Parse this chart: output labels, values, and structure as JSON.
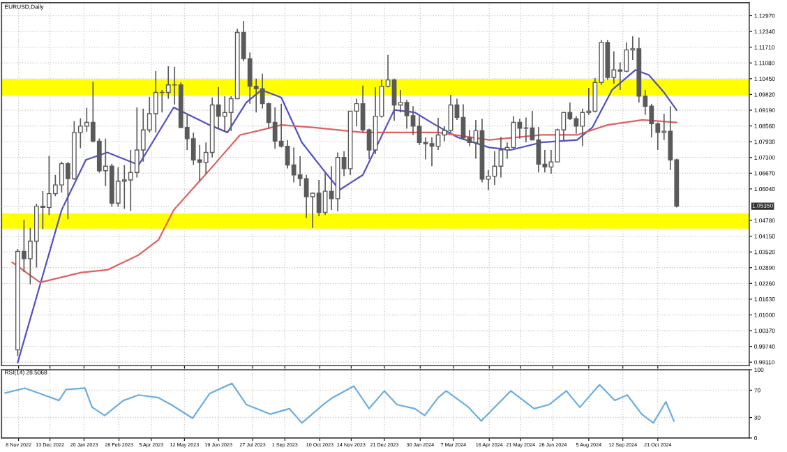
{
  "chart_data": [
    {
      "type": "candlestick",
      "title": "EURUSD,Daily",
      "color": "#5a5a5a",
      "x": [
        "2022-11-07",
        "2022-11-14",
        "2022-11-21",
        "2022-11-28",
        "2022-12-05",
        "2022-12-12",
        "2022-12-19",
        "2022-12-26",
        "2023-01-02",
        "2023-01-09",
        "2023-01-16",
        "2023-01-23",
        "2023-01-30",
        "2023-02-06",
        "2023-02-13",
        "2023-02-20",
        "2023-02-27",
        "2023-03-06",
        "2023-03-13",
        "2023-03-20",
        "2023-03-27",
        "2023-04-03",
        "2023-04-10",
        "2023-04-17",
        "2023-04-24",
        "2023-05-01",
        "2023-05-08",
        "2023-05-15",
        "2023-05-22",
        "2023-05-29",
        "2023-06-05",
        "2023-06-12",
        "2023-06-19",
        "2023-06-26",
        "2023-07-03",
        "2023-07-10",
        "2023-07-17",
        "2023-07-24",
        "2023-07-31",
        "2023-08-07",
        "2023-08-14",
        "2023-08-21",
        "2023-08-28",
        "2023-09-04",
        "2023-09-11",
        "2023-09-18",
        "2023-09-25",
        "2023-10-02",
        "2023-10-09",
        "2023-10-16",
        "2023-10-23",
        "2023-10-30",
        "2023-11-06",
        "2023-11-13",
        "2023-11-20",
        "2023-11-27",
        "2023-12-04",
        "2023-12-11",
        "2023-12-18",
        "2023-12-25",
        "2024-01-01",
        "2024-01-08",
        "2024-01-15",
        "2024-01-22",
        "2024-01-29",
        "2024-02-05",
        "2024-02-12",
        "2024-02-19",
        "2024-02-26",
        "2024-03-04",
        "2024-03-11",
        "2024-03-18",
        "2024-03-25",
        "2024-04-01",
        "2024-04-08",
        "2024-04-15",
        "2024-04-22",
        "2024-04-29",
        "2024-05-06",
        "2024-05-13",
        "2024-05-20",
        "2024-05-27",
        "2024-06-03",
        "2024-06-10",
        "2024-06-17",
        "2024-06-24",
        "2024-07-01",
        "2024-07-08",
        "2024-07-15",
        "2024-07-22",
        "2024-07-29",
        "2024-08-05",
        "2024-08-12",
        "2024-08-19",
        "2024-08-26",
        "2024-09-02",
        "2024-09-09",
        "2024-09-16",
        "2024-09-23",
        "2024-09-30",
        "2024-10-07",
        "2024-10-14",
        "2024-10-21",
        "2024-10-28",
        "2024-11-04",
        "2024-11-11"
      ],
      "ohlc": [
        [
          0.996,
          1.0364,
          0.9935,
          1.0354
        ],
        [
          1.0354,
          1.048,
          1.0271,
          1.0325
        ],
        [
          1.0325,
          1.0448,
          1.0222,
          1.0395
        ],
        [
          1.0395,
          1.0545,
          1.029,
          1.0535
        ],
        [
          1.0535,
          1.0595,
          1.0443,
          1.053
        ],
        [
          1.053,
          1.0736,
          1.05,
          1.0585
        ],
        [
          1.0585,
          1.066,
          1.0575,
          1.062
        ],
        [
          1.062,
          1.0713,
          1.059,
          1.0705
        ],
        [
          1.0705,
          1.0712,
          1.0483,
          1.0645
        ],
        [
          1.0645,
          1.0875,
          1.064,
          1.083
        ],
        [
          1.083,
          1.0887,
          1.0767,
          1.0855
        ],
        [
          1.0855,
          1.0929,
          1.0833,
          1.087
        ],
        [
          1.087,
          1.1033,
          1.079,
          1.0795
        ],
        [
          1.0795,
          1.0806,
          1.0669,
          1.0677
        ],
        [
          1.0677,
          1.0805,
          1.0615,
          1.0695
        ],
        [
          1.0695,
          1.0705,
          1.0533,
          1.0547
        ],
        [
          1.0547,
          1.0691,
          1.0533,
          1.0635
        ],
        [
          1.0635,
          1.07,
          1.0524,
          1.064
        ],
        [
          1.064,
          1.076,
          1.0516,
          1.067
        ],
        [
          1.067,
          1.093,
          1.065,
          1.076
        ],
        [
          1.076,
          1.0925,
          1.0713,
          1.084
        ],
        [
          1.084,
          1.0973,
          1.083,
          1.0905
        ],
        [
          1.0905,
          1.1075,
          1.083,
          1.099
        ],
        [
          1.099,
          1.1,
          1.091,
          1.099
        ],
        [
          1.099,
          1.1095,
          1.0965,
          1.102
        ],
        [
          1.102,
          1.1092,
          1.0942,
          1.102
        ],
        [
          1.102,
          1.103,
          1.085,
          1.085
        ],
        [
          1.085,
          1.09,
          1.076,
          1.0805
        ],
        [
          1.0805,
          1.083,
          1.07,
          1.072
        ],
        [
          1.072,
          1.078,
          1.0635,
          1.071
        ],
        [
          1.071,
          1.079,
          1.0665,
          1.075
        ],
        [
          1.075,
          1.097,
          1.073,
          1.094
        ],
        [
          1.094,
          1.1012,
          1.0845,
          1.0895
        ],
        [
          1.0895,
          1.0975,
          1.0835,
          1.091
        ],
        [
          1.091,
          1.0975,
          1.0835,
          1.0965
        ],
        [
          1.0965,
          1.1245,
          1.0965,
          1.123
        ],
        [
          1.123,
          1.1276,
          1.1115,
          1.1125
        ],
        [
          1.1125,
          1.115,
          1.0945,
          1.1015
        ],
        [
          1.1015,
          1.1045,
          1.091,
          1.1005
        ],
        [
          1.1005,
          1.1065,
          1.0925,
          1.0945
        ],
        [
          1.0945,
          1.095,
          1.0845,
          1.087
        ],
        [
          1.087,
          1.093,
          1.0765,
          1.0795
        ],
        [
          1.0795,
          1.0945,
          1.077,
          1.0775
        ],
        [
          1.0775,
          1.08,
          1.0686,
          1.07
        ],
        [
          1.07,
          1.077,
          1.063,
          1.066
        ],
        [
          1.066,
          1.0735,
          1.0615,
          1.0645
        ],
        [
          1.0645,
          1.066,
          1.0488,
          1.0573
        ],
        [
          1.0573,
          1.059,
          1.0448,
          1.0587
        ],
        [
          1.0587,
          1.064,
          1.0495,
          1.051
        ],
        [
          1.051,
          1.067,
          1.05,
          1.0595
        ],
        [
          1.0595,
          1.0695,
          1.052,
          1.0565
        ],
        [
          1.0565,
          1.075,
          1.0515,
          1.073
        ],
        [
          1.073,
          1.0755,
          1.0655,
          1.0685
        ],
        [
          1.0685,
          1.0915,
          1.066,
          1.0915
        ],
        [
          1.0915,
          1.0965,
          1.0855,
          1.0945
        ],
        [
          1.0945,
          1.1017,
          1.083,
          1.084
        ],
        [
          1.084,
          1.0845,
          1.0723,
          1.076
        ],
        [
          1.076,
          1.101,
          1.0743,
          1.0895
        ],
        [
          1.0895,
          1.104,
          1.089,
          1.1015
        ],
        [
          1.1015,
          1.114,
          1.101,
          1.104
        ],
        [
          1.104,
          1.1045,
          1.0877,
          1.094
        ],
        [
          1.094,
          1.1,
          1.091,
          1.095
        ],
        [
          1.095,
          1.096,
          1.0845,
          1.0897
        ],
        [
          1.0897,
          1.0935,
          1.082,
          1.0855
        ],
        [
          1.0855,
          1.0895,
          1.078,
          1.079
        ],
        [
          1.079,
          1.081,
          1.0722,
          1.0785
        ],
        [
          1.0785,
          1.081,
          1.0695,
          1.0775
        ],
        [
          1.0775,
          1.0888,
          1.076,
          1.082
        ],
        [
          1.082,
          1.0855,
          1.0795,
          1.0838
        ],
        [
          1.0838,
          1.098,
          1.083,
          1.094
        ],
        [
          1.094,
          1.0965,
          1.088,
          1.089
        ],
        [
          1.089,
          1.0943,
          1.08,
          1.0808
        ],
        [
          1.0808,
          1.084,
          1.0775,
          1.079
        ],
        [
          1.079,
          1.088,
          1.0725,
          1.0837
        ],
        [
          1.0837,
          1.0885,
          1.063,
          1.0643
        ],
        [
          1.0643,
          1.068,
          1.06,
          1.0655
        ],
        [
          1.0655,
          1.0755,
          1.062,
          1.0695
        ],
        [
          1.0695,
          1.0812,
          1.065,
          1.076
        ],
        [
          1.076,
          1.079,
          1.0725,
          1.077
        ],
        [
          1.077,
          1.0895,
          1.0765,
          1.087
        ],
        [
          1.087,
          1.0885,
          1.0805,
          1.0847
        ],
        [
          1.0847,
          1.089,
          1.079,
          1.0848
        ],
        [
          1.0848,
          1.0916,
          1.08,
          1.08
        ],
        [
          1.08,
          1.0852,
          1.067,
          1.0703
        ],
        [
          1.0703,
          1.076,
          1.067,
          1.0692
        ],
        [
          1.0692,
          1.076,
          1.0665,
          1.0712
        ],
        [
          1.0712,
          1.0845,
          1.071,
          1.084
        ],
        [
          1.084,
          1.091,
          1.0795,
          1.091
        ],
        [
          1.091,
          1.095,
          1.088,
          1.0885
        ],
        [
          1.0885,
          1.0895,
          1.0825,
          1.0855
        ],
        [
          1.0855,
          1.0925,
          1.0775,
          1.091
        ],
        [
          1.091,
          1.1008,
          1.09,
          1.0915
        ],
        [
          1.0915,
          1.1047,
          1.091,
          1.103
        ],
        [
          1.103,
          1.12,
          1.102,
          1.119
        ],
        [
          1.119,
          1.12,
          1.104,
          1.105
        ],
        [
          1.105,
          1.1155,
          1.1025,
          1.108
        ],
        [
          1.108,
          1.111,
          1.1,
          1.1075
        ],
        [
          1.1075,
          1.119,
          1.107,
          1.116
        ],
        [
          1.116,
          1.1215,
          1.112,
          1.1165
        ],
        [
          1.1165,
          1.121,
          1.095,
          1.0975
        ],
        [
          1.0975,
          1.1,
          1.09,
          1.0935
        ],
        [
          1.0935,
          1.0945,
          1.081,
          1.0865
        ],
        [
          1.0865,
          1.087,
          1.076,
          1.083
        ],
        [
          1.083,
          1.0905,
          1.08,
          1.0835
        ],
        [
          1.0835,
          1.0935,
          1.068,
          1.072
        ],
        [
          1.072,
          1.0725,
          1.053,
          1.0535
        ]
      ],
      "series": [
        {
          "type": "line",
          "color": "#5050c8",
          "x": [
            "2022-11-07",
            "2022-12-26",
            "2023-01-22",
            "2023-02-15",
            "2023-03-22",
            "2023-04-30",
            "2023-06-09",
            "2023-06-29",
            "2023-07-20",
            "2023-08-06",
            "2023-08-28",
            "2023-09-20",
            "2023-10-14",
            "2023-11-01",
            "2023-11-27",
            "2024-01-01",
            "2024-01-24",
            "2024-02-16",
            "2024-03-12",
            "2024-04-16",
            "2024-05-10",
            "2024-06-13",
            "2024-07-23",
            "2024-08-09",
            "2024-08-31",
            "2024-09-26",
            "2024-10-11",
            "2024-10-28",
            "2024-11-11"
          ],
          "values": [
            0.991,
            1.052,
            1.072,
            1.075,
            1.07,
            1.093,
            1.086,
            1.083,
            1.095,
            1.1,
            1.097,
            1.079,
            1.068,
            1.06,
            1.066,
            1.092,
            1.091,
            1.086,
            1.081,
            1.077,
            1.076,
            1.079,
            1.08,
            1.085,
            1.1,
            1.108,
            1.106,
            1.099,
            1.092
          ]
        },
        {
          "type": "line",
          "color": "#e06060",
          "x": [
            "2022-11-01",
            "2022-12-02",
            "2023-01-17",
            "2023-02-15",
            "2023-03-22",
            "2023-04-13",
            "2023-04-30",
            "2023-06-09",
            "2023-07-13",
            "2023-08-06",
            "2023-08-28",
            "2023-10-02",
            "2023-11-27",
            "2024-01-24",
            "2024-02-19",
            "2024-04-16",
            "2024-06-13",
            "2024-07-23",
            "2024-08-26",
            "2024-10-04",
            "2024-11-11"
          ],
          "values": [
            1.031,
            1.023,
            1.027,
            1.028,
            1.034,
            1.04,
            1.052,
            1.068,
            1.082,
            1.084,
            1.086,
            1.085,
            1.083,
            1.083,
            1.083,
            1.08,
            1.082,
            1.082,
            1.086,
            1.088,
            1.087
          ]
        }
      ],
      "bands": [
        {
          "axis": "y",
          "from": 1.0977,
          "to": 1.1044,
          "color": "#ffff00"
        },
        {
          "axis": "y",
          "from": 1.0445,
          "to": 1.0506,
          "color": "#ffff00"
        }
      ],
      "ref_lines": [
        {
          "axis": "y",
          "value": 1.0535,
          "label": "1.05350",
          "color": "#c0c0c0",
          "line_style": "dotted"
        }
      ],
      "xlim": [
        "2022-10-20",
        "2025-01-31"
      ],
      "xticks": [
        {
          "value": "2022-11-08",
          "label": null
        },
        {
          "value": "2022-12-13",
          "label": null
        },
        {
          "value": "2023-01-20",
          "label": null
        },
        {
          "value": "2023-02-28",
          "label": null
        },
        {
          "value": "2023-04-05",
          "label": null
        },
        {
          "value": "2023-05-12",
          "label": null
        },
        {
          "value": "2023-06-19",
          "label": null
        },
        {
          "value": "2023-07-27",
          "label": null
        },
        {
          "value": "2023-09-01",
          "label": null
        },
        {
          "value": "2023-10-10",
          "label": null
        },
        {
          "value": "2023-11-14",
          "label": null
        },
        {
          "value": "2023-12-21",
          "label": null
        },
        {
          "value": "2024-01-30",
          "label": null
        },
        {
          "value": "2024-03-07",
          "label": null
        },
        {
          "value": "2024-04-16",
          "label": null
        },
        {
          "value": "2024-05-21",
          "label": null
        },
        {
          "value": "2024-06-26",
          "label": null
        },
        {
          "value": "2024-08-05",
          "label": null
        },
        {
          "value": "2024-09-12",
          "label": null
        },
        {
          "value": "2024-10-21",
          "label": null
        }
      ],
      "ylim": [
        0.9897,
        1.1349
      ],
      "yticks": [
        {
          "value": 1.1297,
          "label": "1.12970"
        },
        {
          "value": 1.1234,
          "label": "1.12340"
        },
        {
          "value": 1.1171,
          "label": "1.11710"
        },
        {
          "value": 1.1108,
          "label": "1.11080"
        },
        {
          "value": 1.1045,
          "label": "1.10450"
        },
        {
          "value": 1.0982,
          "label": "1.09820"
        },
        {
          "value": 1.0919,
          "label": "1.09190"
        },
        {
          "value": 1.0856,
          "label": "1.08560"
        },
        {
          "value": 1.0793,
          "label": "1.07930"
        },
        {
          "value": 1.073,
          "label": "1.07300"
        },
        {
          "value": 1.0667,
          "label": "1.06670"
        },
        {
          "value": 1.0604,
          "label": "1.06040"
        },
        {
          "value": 1.0478,
          "label": "1.04780"
        },
        {
          "value": 1.0415,
          "label": "1.04150"
        },
        {
          "value": 1.0352,
          "label": "1.03520"
        },
        {
          "value": 1.0289,
          "label": "1.02890"
        },
        {
          "value": 1.0226,
          "label": "1.02260"
        },
        {
          "value": 1.0163,
          "label": "1.01630"
        },
        {
          "value": 1.01,
          "label": "1.01000"
        },
        {
          "value": 1.0037,
          "label": "1.00370"
        },
        {
          "value": 0.9974,
          "label": "0.99740"
        },
        {
          "value": 0.9911,
          "label": "0.99110"
        }
      ],
      "tick_labels": "y",
      "grid": true
    },
    {
      "type": "line",
      "title": "RSI(14) 28.5068",
      "series": [
        {
          "color": "#6aaee0",
          "x": [
            "2022-10-24",
            "2022-11-15",
            "2022-12-02",
            "2022-12-23",
            "2022-12-31",
            "2023-01-21",
            "2023-01-29",
            "2023-02-12",
            "2023-03-05",
            "2023-03-22",
            "2023-04-13",
            "2023-04-27",
            "2023-05-21",
            "2023-06-09",
            "2023-07-04",
            "2023-07-20",
            "2023-08-16",
            "2023-09-06",
            "2023-09-20",
            "2023-10-14",
            "2023-10-24",
            "2023-11-17",
            "2023-12-04",
            "2023-12-21",
            "2024-01-04",
            "2024-01-24",
            "2024-02-04",
            "2024-02-19",
            "2024-02-28",
            "2024-03-24",
            "2024-04-07",
            "2024-05-10",
            "2024-06-05",
            "2024-06-22",
            "2024-07-11",
            "2024-07-26",
            "2024-08-17",
            "2024-09-03",
            "2024-09-17",
            "2024-10-03",
            "2024-10-16",
            "2024-10-30",
            "2024-11-08"
          ],
          "values": [
            66,
            73,
            65,
            55,
            71,
            73,
            45,
            33,
            55,
            63,
            59,
            49,
            29,
            65,
            80,
            49,
            35,
            43,
            22,
            49,
            59,
            76,
            43,
            69,
            49,
            43,
            33,
            59,
            69,
            45,
            25,
            69,
            43,
            49,
            69,
            45,
            78,
            55,
            63,
            35,
            22,
            53,
            25
          ]
        }
      ],
      "xlim": [
        "2022-10-20",
        "2025-01-31"
      ],
      "xticks": [
        {
          "value": "2022-11-08",
          "label": "8 Nov 2022"
        },
        {
          "value": "2022-12-13",
          "label": "13 Dec 2022"
        },
        {
          "value": "2023-01-20",
          "label": "20 Jan 2023"
        },
        {
          "value": "2023-02-28",
          "label": "28 Feb 2023"
        },
        {
          "value": "2023-04-05",
          "label": "5 Apr 2023"
        },
        {
          "value": "2023-05-12",
          "label": "12 May 2023"
        },
        {
          "value": "2023-06-19",
          "label": "19 Jun 2023"
        },
        {
          "value": "2023-07-27",
          "label": "27 Jul 2023"
        },
        {
          "value": "2023-09-01",
          "label": "1 Sep 2023"
        },
        {
          "value": "2023-10-10",
          "label": "10 Oct 2023"
        },
        {
          "value": "2023-11-14",
          "label": "14 Nov 2023"
        },
        {
          "value": "2023-12-21",
          "label": "21 Dec 2023"
        },
        {
          "value": "2024-01-30",
          "label": "30 Jan 2024"
        },
        {
          "value": "2024-03-07",
          "label": "7 Mar 2024"
        },
        {
          "value": "2024-04-16",
          "label": "16 Apr 2024"
        },
        {
          "value": "2024-05-21",
          "label": "21 May 2024"
        },
        {
          "value": "2024-06-26",
          "label": "26 Jun 2024"
        },
        {
          "value": "2024-08-05",
          "label": "5 Aug 2024"
        },
        {
          "value": "2024-09-12",
          "label": "12 Sep 2024"
        },
        {
          "value": "2024-10-21",
          "label": "21 Oct 2024"
        }
      ],
      "ylim": [
        0,
        100
      ],
      "yticks": [
        0,
        30,
        70,
        100
      ],
      "grid": true
    }
  ]
}
